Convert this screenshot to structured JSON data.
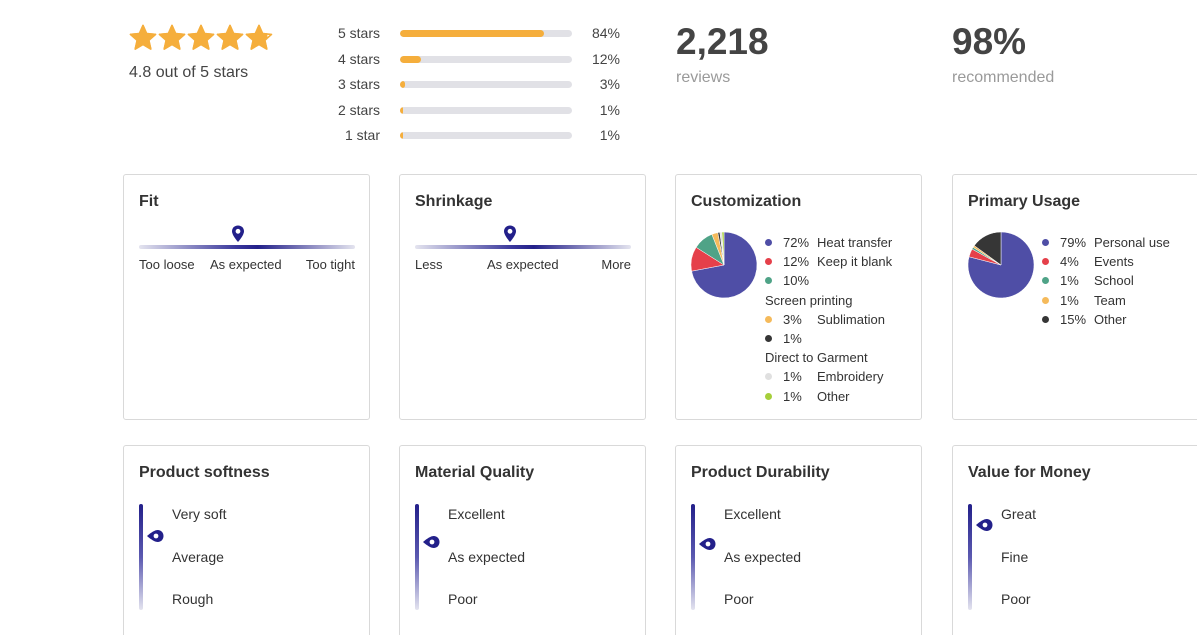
{
  "summary": {
    "rating_text": "4.8 out of 5 stars",
    "star_rating": 4.8,
    "star_color": "#f5ae3c",
    "distribution": [
      {
        "label": "5 stars",
        "pct": "84%",
        "value": 84
      },
      {
        "label": "4 stars",
        "pct": "12%",
        "value": 12
      },
      {
        "label": "3 stars",
        "pct": "3%",
        "value": 3
      },
      {
        "label": "2 stars",
        "pct": "1%",
        "value": 1
      },
      {
        "label": "1 star",
        "pct": "1%",
        "value": 1
      }
    ],
    "reviews_count": "2,218",
    "reviews_label": "reviews",
    "recommended_pct": "98%",
    "recommended_label": "recommended"
  },
  "fit": {
    "title": "Fit",
    "labels": [
      "Too loose",
      "As expected",
      "Too tight"
    ],
    "marker_position": 0.46
  },
  "shrinkage": {
    "title": "Shrinkage",
    "labels": [
      "Less",
      "As expected",
      "More"
    ],
    "marker_position": 0.44
  },
  "customization": {
    "title": "Customization",
    "legend": [
      {
        "pct": "72%",
        "label": "Heat transfer",
        "color": "#4f4ea6"
      },
      {
        "pct": "12%",
        "label": "Keep it blank",
        "color": "#e5404a"
      },
      {
        "pct": "10%",
        "label": "Screen printing",
        "color": "#4fa387"
      },
      {
        "pct": "3%",
        "label": "Sublimation",
        "color": "#f5ba5b"
      },
      {
        "pct": "1%",
        "label": "Direct to Garment",
        "color": "#363636"
      },
      {
        "pct": "1%",
        "label": "Embroidery",
        "color": "#e0e0e0"
      },
      {
        "pct": "1%",
        "label": "Other",
        "color": "#a6cf3b"
      }
    ]
  },
  "primary_usage": {
    "title": "Primary Usage",
    "legend": [
      {
        "pct": "79%",
        "label": "Personal use",
        "color": "#4f4ea6"
      },
      {
        "pct": "4%",
        "label": "Events",
        "color": "#e5404a"
      },
      {
        "pct": "1%",
        "label": "School",
        "color": "#4fa387"
      },
      {
        "pct": "1%",
        "label": "Team",
        "color": "#f5ba5b"
      },
      {
        "pct": "15%",
        "label": "Other",
        "color": "#363636"
      }
    ]
  },
  "softness": {
    "title": "Product softness",
    "labels": [
      "Very soft",
      "Average",
      "Rough"
    ],
    "marker_position": 0.3
  },
  "quality": {
    "title": "Material Quality",
    "labels": [
      "Excellent",
      "As expected",
      "Poor"
    ],
    "marker_position": 0.36
  },
  "durability": {
    "title": "Product Durability",
    "labels": [
      "Excellent",
      "As expected",
      "Poor"
    ],
    "marker_position": 0.38
  },
  "value": {
    "title": "Value for Money",
    "labels": [
      "Great",
      "Fine",
      "Poor"
    ],
    "marker_position": 0.2
  },
  "colors": {
    "accent": "#23208a",
    "bar_fill": "#f5ae3c",
    "bar_track": "#e1e1e6"
  }
}
